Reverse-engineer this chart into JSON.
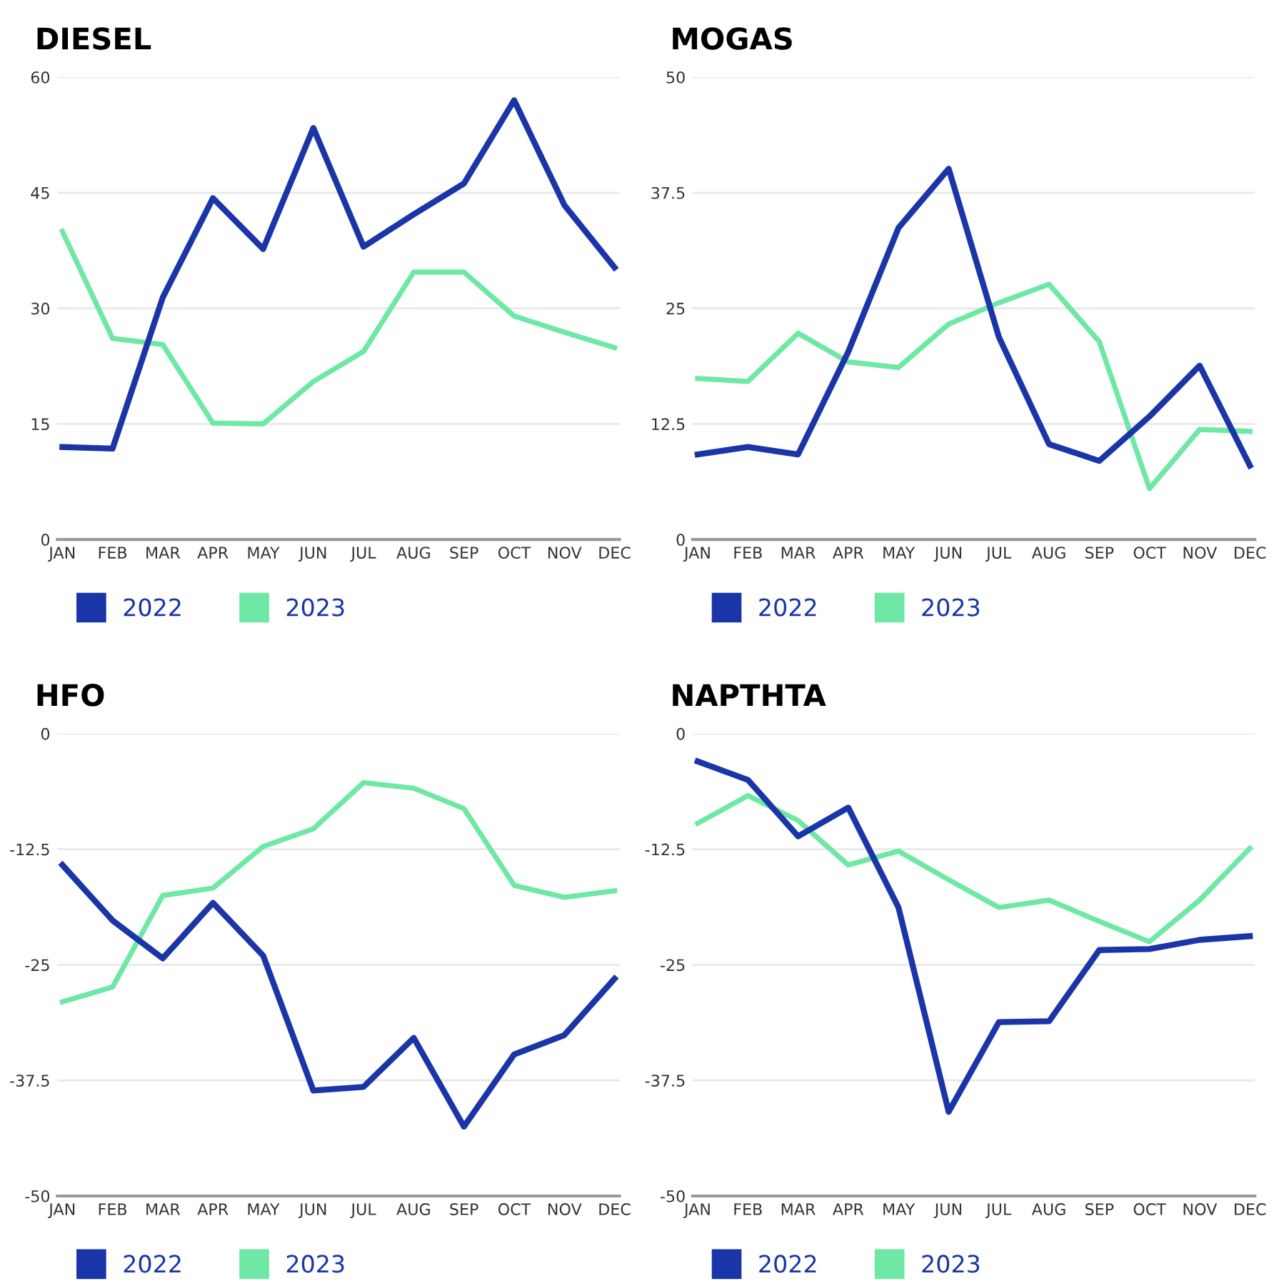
{
  "chart_data": [
    {
      "type": "line",
      "title": "DIESEL",
      "categories": [
        "JAN",
        "FEB",
        "MAR",
        "APR",
        "MAY",
        "JUN",
        "JUL",
        "AUG",
        "SEP",
        "OCT",
        "NOV",
        "DEC"
      ],
      "ylim": [
        0,
        60
      ],
      "yticks": [
        0,
        15,
        30,
        45,
        60
      ],
      "grid": "y",
      "legend": "bottom left",
      "marker": "none",
      "line_style": "solid",
      "series": [
        {
          "name": "2022",
          "color": "#1a35a8",
          "values": [
            12.0,
            11.8,
            31.4,
            44.3,
            37.7,
            53.4,
            38.0,
            42.2,
            46.2,
            57.0,
            43.4,
            35.3
          ]
        },
        {
          "name": "2023",
          "color": "#6ee8a4",
          "values": [
            40.0,
            26.1,
            25.3,
            15.1,
            15.0,
            20.5,
            24.4,
            34.7,
            34.7,
            29.0,
            26.9,
            24.9
          ]
        }
      ]
    },
    {
      "type": "line",
      "title": "MOGAS",
      "categories": [
        "JAN",
        "FEB",
        "MAR",
        "APR",
        "MAY",
        "JUN",
        "JUL",
        "AUG",
        "SEP",
        "OCT",
        "NOV",
        "DEC"
      ],
      "ylim": [
        0,
        50
      ],
      "yticks": [
        0,
        12.5,
        25,
        37.5,
        50
      ],
      "grid": "y",
      "legend": "bottom left",
      "marker": "none",
      "line_style": "solid",
      "series": [
        {
          "name": "2022",
          "color": "#1a35a8",
          "values": [
            9.2,
            10.0,
            9.2,
            20.3,
            33.7,
            40.1,
            21.9,
            10.3,
            8.5,
            13.3,
            18.8,
            8.0
          ]
        },
        {
          "name": "2023",
          "color": "#6ee8a4",
          "values": [
            17.4,
            17.1,
            22.3,
            19.2,
            18.6,
            23.3,
            25.6,
            27.6,
            21.4,
            5.5,
            11.9,
            11.7
          ]
        }
      ]
    },
    {
      "type": "line",
      "title": "HFO",
      "categories": [
        "JAN",
        "FEB",
        "MAR",
        "APR",
        "MAY",
        "JUN",
        "JUL",
        "AUG",
        "SEP",
        "OCT",
        "NOV",
        "DEC"
      ],
      "ylim": [
        -50,
        0
      ],
      "yticks": [
        -50,
        -37.5,
        -25,
        -12.5,
        0
      ],
      "grid": "y",
      "legend": "bottom left",
      "marker": "none",
      "line_style": "solid",
      "series": [
        {
          "name": "2022",
          "color": "#1a35a8",
          "values": [
            -14.2,
            -20.2,
            -24.3,
            -18.3,
            -24.0,
            -38.6,
            -38.2,
            -32.9,
            -42.5,
            -34.7,
            -32.6,
            -26.5
          ]
        },
        {
          "name": "2023",
          "color": "#6ee8a4",
          "values": [
            -29.0,
            -27.4,
            -17.5,
            -16.7,
            -12.2,
            -10.3,
            -5.3,
            -5.9,
            -8.1,
            -16.4,
            -17.7,
            -17.0
          ]
        }
      ]
    },
    {
      "type": "line",
      "title": "NAPTHTA",
      "categories": [
        "JAN",
        "FEB",
        "MAR",
        "APR",
        "MAY",
        "JUN",
        "JUL",
        "AUG",
        "SEP",
        "OCT",
        "NOV",
        "DEC"
      ],
      "ylim": [
        -50,
        0
      ],
      "yticks": [
        -50,
        -37.5,
        -25,
        -12.5,
        0
      ],
      "grid": "y",
      "legend": "bottom left",
      "marker": "none",
      "line_style": "solid",
      "series": [
        {
          "name": "2022",
          "color": "#1a35a8",
          "values": [
            -3.0,
            -5.0,
            -11.1,
            -8.0,
            -18.8,
            -40.9,
            -31.2,
            -31.1,
            -23.4,
            -23.3,
            -22.3,
            -21.9
          ]
        },
        {
          "name": "2023",
          "color": "#6ee8a4",
          "values": [
            -9.7,
            -6.7,
            -9.4,
            -14.2,
            -12.7,
            -15.8,
            -18.8,
            -18.0,
            -20.3,
            -22.5,
            -18.0,
            -12.4
          ]
        }
      ]
    }
  ]
}
